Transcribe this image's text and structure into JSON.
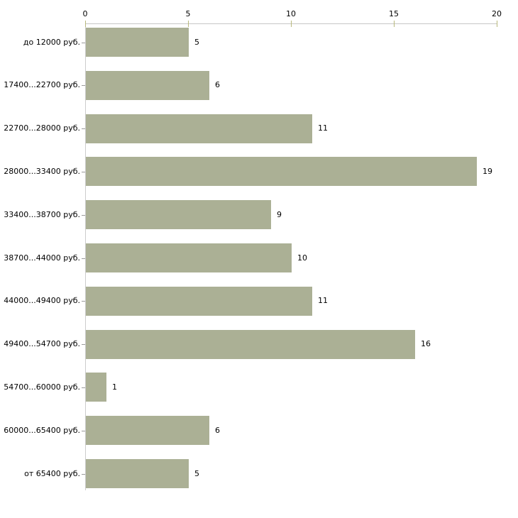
{
  "chart_data": {
    "type": "bar",
    "orientation": "horizontal",
    "title": "",
    "xlabel": "",
    "ylabel": "",
    "categories": [
      "до 12000 руб.",
      "17400...22700 руб.",
      "22700...28000 руб.",
      "28000...33400 руб.",
      "33400...38700 руб.",
      "38700...44000 руб.",
      "44000...49400 руб.",
      "49400...54700 руб.",
      "54700...60000 руб.",
      "60000...65400 руб.",
      "от 65400 руб."
    ],
    "values": [
      5,
      6,
      11,
      19,
      9,
      10,
      11,
      16,
      1,
      6,
      5
    ],
    "data_labels_shown": true,
    "xlim": [
      0,
      20
    ],
    "x_ticks": [
      0,
      5,
      10,
      15,
      20
    ],
    "x_axis_position": "top",
    "grid": false,
    "legend": false,
    "colors": {
      "bar": "#abb095",
      "axis_line": "#c6c6c6",
      "tick_mark": "#b9b97c",
      "category_tick": "#9a9a9a",
      "text": "#000000",
      "background": "#ffffff"
    }
  }
}
